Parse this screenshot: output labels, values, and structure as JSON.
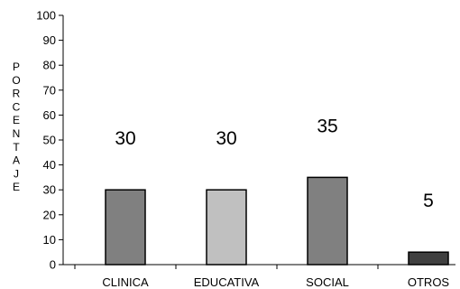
{
  "chart_data": {
    "type": "bar",
    "categories": [
      "CLINICA",
      "EDUCATIVA",
      "SOCIAL",
      "OTROS"
    ],
    "values": [
      30,
      30,
      35,
      5
    ],
    "data_labels": [
      "30",
      "30",
      "35",
      "5"
    ],
    "bar_colors": [
      "#808080",
      "#c0c0c0",
      "#808080",
      "#404040"
    ],
    "title": "",
    "xlabel": "",
    "ylabel": "PORCENTAJE",
    "ylim": [
      0,
      100
    ],
    "yticks": [
      0,
      10,
      20,
      30,
      40,
      50,
      60,
      70,
      80,
      90,
      100
    ],
    "grid": false,
    "legend": "none"
  }
}
